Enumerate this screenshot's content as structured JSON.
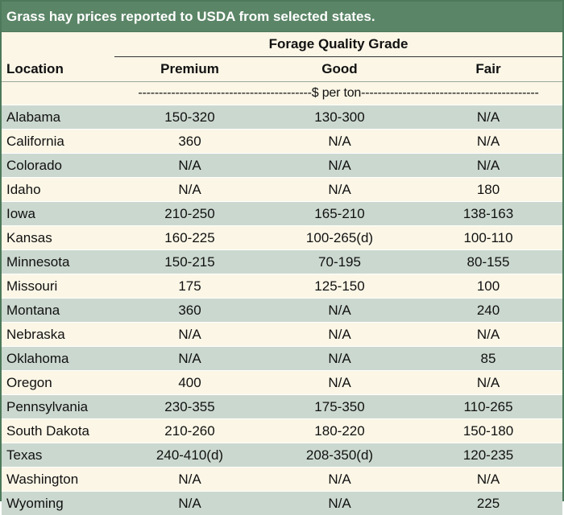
{
  "title": "Grass hay prices reported to USDA from selected states.",
  "header": {
    "group_label": "Forage Quality Grade",
    "location_label": "Location",
    "columns": [
      "Premium",
      "Good",
      "Fair"
    ],
    "units": "------------------------------------------$ per ton-------------------------------------------"
  },
  "rows": [
    {
      "location": "Alabama",
      "premium": "150-320",
      "good": "130-300",
      "fair": "N/A"
    },
    {
      "location": "California",
      "premium": "360",
      "good": "N/A",
      "fair": "N/A"
    },
    {
      "location": "Colorado",
      "premium": "N/A",
      "good": "N/A",
      "fair": "N/A"
    },
    {
      "location": "Idaho",
      "premium": "N/A",
      "good": "N/A",
      "fair": "180"
    },
    {
      "location": "Iowa",
      "premium": "210-250",
      "good": "165-210",
      "fair": "138-163"
    },
    {
      "location": "Kansas",
      "premium": "160-225",
      "good": "100-265(d)",
      "fair": "100-110"
    },
    {
      "location": "Minnesota",
      "premium": "150-215",
      "good": "70-195",
      "fair": "80-155"
    },
    {
      "location": "Missouri",
      "premium": "175",
      "good": "125-150",
      "fair": "100"
    },
    {
      "location": "Montana",
      "premium": "360",
      "good": "N/A",
      "fair": "240"
    },
    {
      "location": "Nebraska",
      "premium": "N/A",
      "good": "N/A",
      "fair": "N/A"
    },
    {
      "location": "Oklahoma",
      "premium": "N/A",
      "good": "N/A",
      "fair": "85"
    },
    {
      "location": "Oregon",
      "premium": "400",
      "good": "N/A",
      "fair": "N/A"
    },
    {
      "location": "Pennsylvania",
      "premium": "230-355",
      "good": "175-350",
      "fair": "110-265"
    },
    {
      "location": "South Dakota",
      "premium": "210-260",
      "good": "180-220",
      "fair": "150-180"
    },
    {
      "location": "Texas",
      "premium": "240-410(d)",
      "good": "208-350(d)",
      "fair": "120-235"
    },
    {
      "location": "Washington",
      "premium": "N/A",
      "good": "N/A",
      "fair": "N/A"
    },
    {
      "location": "Wyoming",
      "premium": "N/A",
      "good": "N/A",
      "fair": "225"
    }
  ],
  "colors": {
    "title_bg": "#5a8566",
    "row_shaded": "#cbd8cf",
    "row_plain": "#fbf6e6"
  }
}
